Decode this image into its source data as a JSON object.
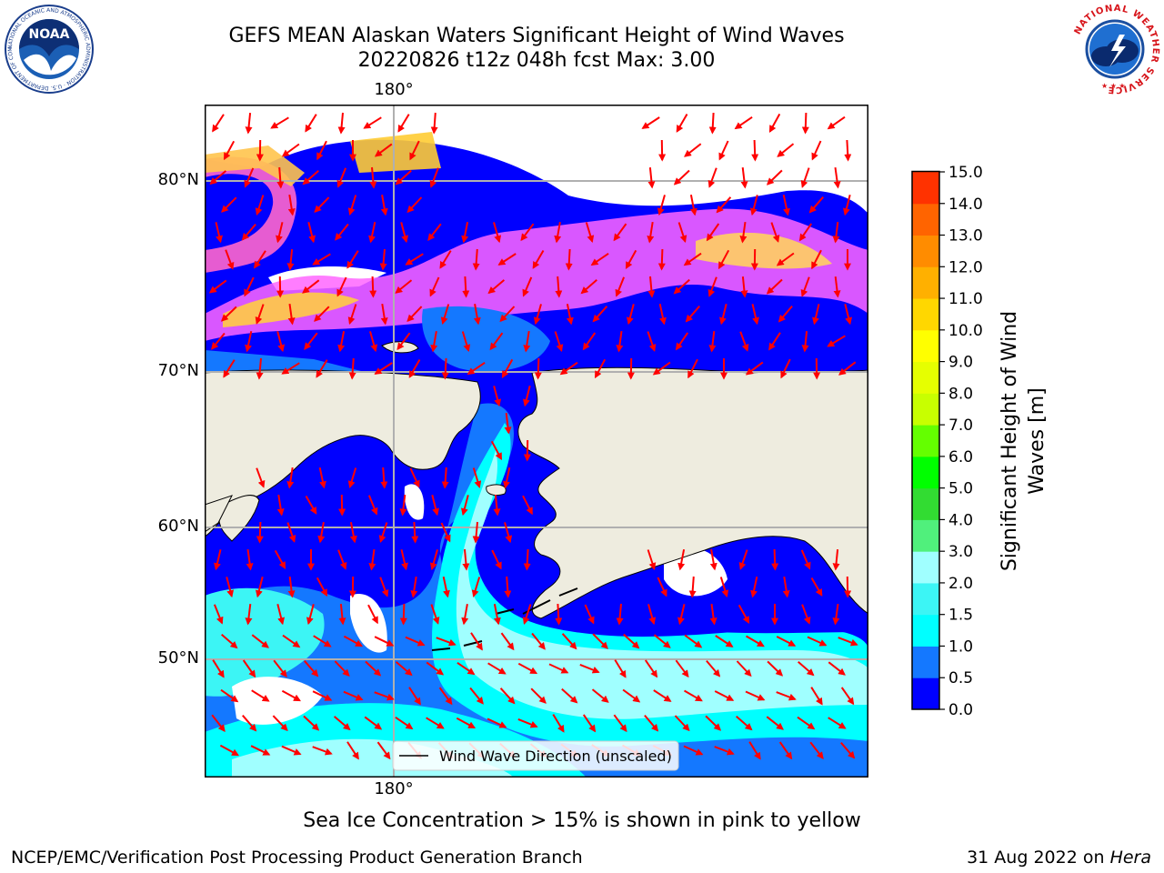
{
  "header": {
    "title_line1": "GEFS MEAN Alaskan Waters Significant Height of Wind Waves",
    "title_line2": "20220826 t12z 048h fcst   Max: 3.00",
    "left_logo_name": "NOAA",
    "left_logo_ring_text": "NATIONAL OCEANIC AND ATMOSPHERIC ADMINISTRATION · U.S. DEPARTMENT OF COMMERCE",
    "right_logo_ring_text": "NATIONAL WEATHER SERVICE"
  },
  "map": {
    "lon_label_top": "180°",
    "lon_label_bottom": "180°",
    "lat_labels": [
      "80°N",
      "70°N",
      "60°N",
      "50°N"
    ],
    "legend_label": "Wind Wave Direction (unscaled)",
    "colors": {
      "land": "#eeecdf",
      "arrow": "#ff0000",
      "grid": "#b0b0b0"
    }
  },
  "colorbar": {
    "title_line1": "Significant Height of Wind",
    "title_line2": "Waves [m]",
    "tick_labels": [
      "0.0",
      "0.5",
      "1.0",
      "1.5",
      "2.0",
      "3.0",
      "4.0",
      "5.0",
      "6.0",
      "7.0",
      "8.0",
      "9.0",
      "10.0",
      "11.0",
      "12.0",
      "13.0",
      "14.0",
      "15.0"
    ],
    "colors": [
      "#0000ff",
      "#1478ff",
      "#00ffff",
      "#3cf5f5",
      "#a0ffff",
      "#50f07c",
      "#32dc32",
      "#00ff00",
      "#64ff00",
      "#c8ff00",
      "#e6ff00",
      "#ffff00",
      "#ffd700",
      "#ffb000",
      "#ff8c00",
      "#ff6400",
      "#ff3200"
    ]
  },
  "note": "Sea Ice Concentration > 15% is shown in pink to yellow",
  "footer": {
    "left": "NCEP/EMC/Verification Post Processing Product Generation Branch",
    "right_prefix": "31 Aug 2022 on ",
    "right_machine": "Hera"
  }
}
